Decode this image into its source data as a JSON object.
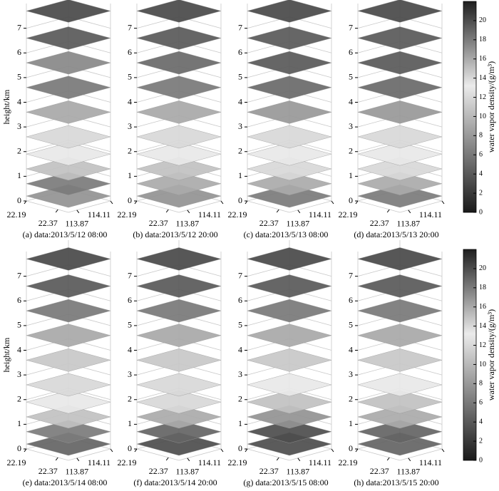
{
  "chart_data": [
    {
      "type": "slice3d",
      "caption": "(a) data:2013/5/12 08:00",
      "zlabel": "height/km",
      "zlim": [
        0,
        8
      ],
      "zticks": [
        0,
        1,
        2,
        3,
        4,
        5,
        6,
        7
      ],
      "xlim": [
        22.19,
        22.43
      ],
      "xticks": [
        22.19,
        22.37
      ],
      "ylim": [
        113.81,
        114.11
      ],
      "yticks": [
        113.87,
        114.11
      ],
      "levels": [
        0.2,
        0.7,
        1.3,
        1.9,
        2.6,
        3.6,
        4.6,
        5.6,
        6.6,
        7.7
      ],
      "values": [
        17,
        18,
        15,
        13,
        12,
        9,
        6,
        7,
        4,
        3
      ]
    },
    {
      "type": "slice3d",
      "caption": "(b) data:2013/5/12 20:00",
      "zlim": [
        0,
        8
      ],
      "zticks": [
        0,
        1,
        2,
        3,
        4,
        5,
        6,
        7
      ],
      "xlim": [
        22.19,
        22.43
      ],
      "xticks": [
        22.19,
        22.37
      ],
      "ylim": [
        113.81,
        114.11
      ],
      "yticks": [
        113.87,
        114.11
      ],
      "levels": [
        0.2,
        0.7,
        1.3,
        1.9,
        2.6,
        3.6,
        4.6,
        5.6,
        6.6,
        7.7
      ],
      "values": [
        17,
        16,
        15,
        13,
        12,
        9,
        6,
        5,
        4,
        3
      ]
    },
    {
      "type": "slice3d",
      "caption": "(c) data:2013/5/13 08:00",
      "zlim": [
        0,
        8
      ],
      "zticks": [
        0,
        1,
        2,
        3,
        4,
        5,
        6,
        7
      ],
      "xlim": [
        22.19,
        22.43
      ],
      "xticks": [
        22.19,
        22.37
      ],
      "ylim": [
        113.81,
        114.11
      ],
      "yticks": [
        113.87,
        114.11
      ],
      "levels": [
        0.2,
        0.7,
        1.3,
        1.9,
        2.6,
        3.6,
        4.6,
        5.6,
        6.6,
        7.7
      ],
      "values": [
        18,
        16,
        14,
        13,
        12,
        8,
        5,
        4,
        4,
        3
      ]
    },
    {
      "type": "slice3d",
      "caption": "(d) data:2013/5/13 20:00",
      "zlim": [
        0,
        8
      ],
      "zticks": [
        0,
        1,
        2,
        3,
        4,
        5,
        6,
        7
      ],
      "xlim": [
        22.19,
        22.43
      ],
      "xticks": [
        22.19,
        22.37
      ],
      "ylim": [
        113.81,
        114.11
      ],
      "yticks": [
        113.87,
        114.11
      ],
      "levels": [
        0.2,
        0.7,
        1.3,
        1.9,
        2.6,
        3.6,
        4.6,
        5.6,
        6.6,
        7.7
      ],
      "values": [
        18,
        16,
        14,
        13,
        12,
        8,
        5,
        4,
        4,
        3
      ]
    },
    {
      "type": "slice3d",
      "caption": "(e) data:2013/5/14 08:00",
      "zlabel": "height/km",
      "zlim": [
        0,
        8
      ],
      "zticks": [
        0,
        1,
        2,
        3,
        4,
        5,
        6,
        7
      ],
      "xlim": [
        22.19,
        22.43
      ],
      "xticks": [
        22.19,
        22.37
      ],
      "ylim": [
        113.81,
        114.11
      ],
      "yticks": [
        113.87,
        114.11
      ],
      "levels": [
        0.2,
        0.7,
        1.3,
        1.9,
        2.6,
        3.6,
        4.6,
        5.6,
        6.6,
        7.7
      ],
      "values": [
        19,
        18,
        15,
        13,
        12,
        11,
        9,
        6,
        4,
        3
      ]
    },
    {
      "type": "slice3d",
      "caption": "(f) data:2013/5/14 20:00",
      "zlim": [
        0,
        8
      ],
      "zticks": [
        0,
        1,
        2,
        3,
        4,
        5,
        6,
        7
      ],
      "xlim": [
        22.19,
        22.43
      ],
      "xticks": [
        22.19,
        22.37
      ],
      "ylim": [
        113.81,
        114.11
      ],
      "yticks": [
        113.87,
        114.11
      ],
      "levels": [
        0.2,
        0.7,
        1.3,
        1.9,
        2.6,
        3.6,
        4.6,
        5.6,
        6.6,
        7.7
      ],
      "values": [
        20,
        19,
        16,
        14,
        12,
        11,
        9,
        6,
        4,
        3
      ]
    },
    {
      "type": "slice3d",
      "caption": "(g) data:2013/5/15 08:00",
      "zlim": [
        0,
        8
      ],
      "zticks": [
        0,
        1,
        2,
        3,
        4,
        5,
        6,
        7
      ],
      "xlim": [
        22.19,
        22.43
      ],
      "xticks": [
        22.19,
        22.37
      ],
      "ylim": [
        113.81,
        114.11
      ],
      "yticks": [
        113.87,
        114.11
      ],
      "levels": [
        0.2,
        0.7,
        1.3,
        1.9,
        2.6,
        3.6,
        4.6,
        5.6,
        6.6,
        7.7
      ],
      "values": [
        20,
        20,
        17,
        15,
        13,
        11,
        9,
        6,
        4,
        3
      ]
    },
    {
      "type": "slice3d",
      "caption": "(h) data:2013/5/15 20:00",
      "zlim": [
        0,
        8
      ],
      "zticks": [
        0,
        1,
        2,
        3,
        4,
        5,
        6,
        7
      ],
      "xlim": [
        22.19,
        22.43
      ],
      "xticks": [
        22.19,
        22.37
      ],
      "ylim": [
        113.81,
        114.11
      ],
      "yticks": [
        113.87,
        114.11
      ],
      "levels": [
        0.2,
        0.7,
        1.3,
        1.9,
        2.6,
        3.6,
        4.6,
        5.6,
        6.6,
        7.7
      ],
      "values": [
        19,
        19,
        16,
        15,
        13,
        11,
        9,
        6,
        4,
        3
      ]
    }
  ],
  "colorbars": [
    {
      "label": "water vapor density/(g/m³)",
      "lim": [
        0,
        22
      ],
      "ticks": [
        0,
        2,
        4,
        6,
        8,
        10,
        12,
        14,
        16,
        18,
        20
      ]
    },
    {
      "label": "water vapor density/(g/m³)",
      "lim": [
        0,
        22
      ],
      "ticks": [
        0,
        2,
        4,
        6,
        8,
        10,
        12,
        14,
        16,
        18,
        20
      ]
    }
  ]
}
